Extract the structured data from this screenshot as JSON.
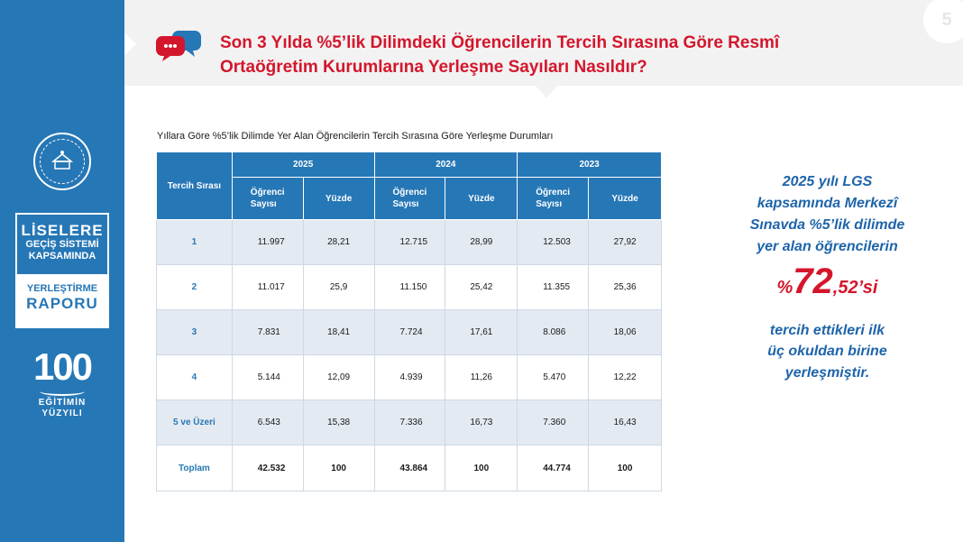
{
  "sidebar": {
    "logo_line1": "LİSELERE",
    "logo_line2": "GEÇİŞ SİSTEMİ",
    "logo_line3": "KAPSAMINDA",
    "logo_line4": "YERLEŞTİRME",
    "logo_line5": "RAPORU",
    "centennial_number": "100",
    "centennial_line1": "EĞİTİMİN",
    "centennial_line2": "YÜZYILI"
  },
  "header": {
    "title_line1": "Son 3 Yılda %5’lik Dilimdeki Öğrencilerin Tercih Sırasına Göre Resmî",
    "title_line2": "Ortaöğretim Kurumlarına Yerleşme Sayıları Nasıldır?",
    "page_number": "5",
    "accent_color": "#d4162c",
    "brand_color": "#2677b6"
  },
  "table": {
    "caption": "Yıllara Göre %5’lik Dilimde Yer Alan Öğrencilerin Tercih Sırasına Göre Yerleşme Durumları",
    "rank_header": "Tercih Sırası",
    "years": [
      "2025",
      "2024",
      "2023"
    ],
    "count_header_line1": "Öğrenci",
    "count_header_line2": "Sayısı",
    "percent_header": "Yüzde",
    "rows": [
      {
        "rank": "1",
        "cells": [
          "11.997",
          "28,21",
          "12.715",
          "28,99",
          "12.503",
          "27,92"
        ]
      },
      {
        "rank": "2",
        "cells": [
          "11.017",
          "25,9",
          "11.150",
          "25,42",
          "11.355",
          "25,36"
        ]
      },
      {
        "rank": "3",
        "cells": [
          "7.831",
          "18,41",
          "7.724",
          "17,61",
          "8.086",
          "18,06"
        ]
      },
      {
        "rank": "4",
        "cells": [
          "5.144",
          "12,09",
          "4.939",
          "11,26",
          "5.470",
          "12,22"
        ]
      },
      {
        "rank": "5 ve Üzeri",
        "cells": [
          "6.543",
          "15,38",
          "7.336",
          "16,73",
          "7.360",
          "16,43"
        ]
      }
    ],
    "total": {
      "rank": "Toplam",
      "cells": [
        "42.532",
        "100",
        "43.864",
        "100",
        "44.774",
        "100"
      ]
    }
  },
  "callout": {
    "line1": "2025 yılı LGS",
    "line2": "kapsamında Merkezî",
    "line3": "Sınavda %5’lik dilimde",
    "line4": "yer alan öğrencilerin",
    "pct_symbol": "%",
    "pct_int": "72",
    "pct_dec": ",52’si",
    "line5": "tercih ettikleri ilk",
    "line6": "üç okuldan birine",
    "line7": "yerleşmiştir."
  }
}
